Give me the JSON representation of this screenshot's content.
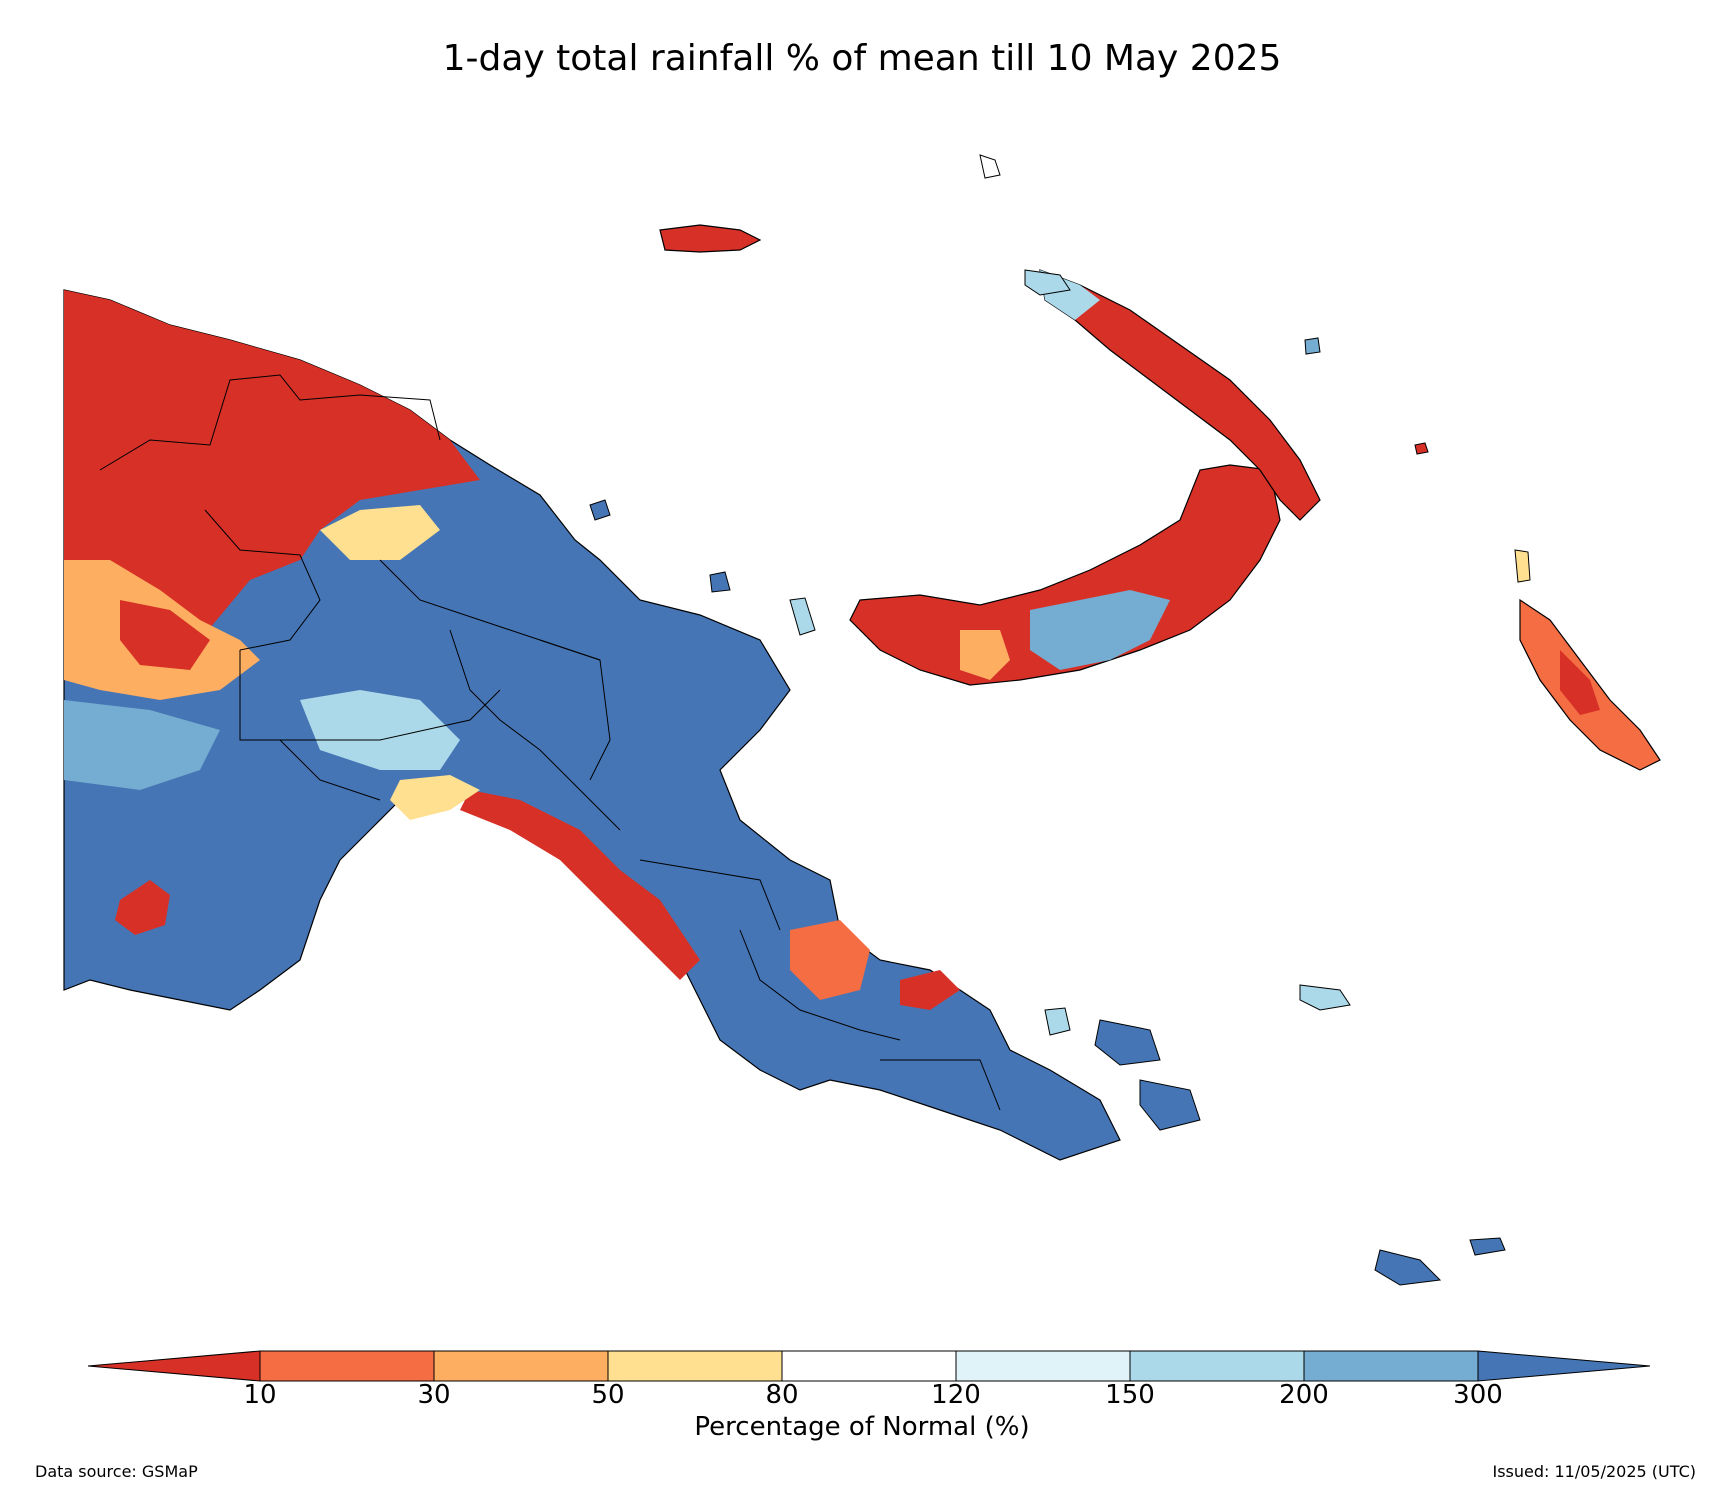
{
  "title": "1-day total rainfall % of mean till 10 May 2025",
  "legend": {
    "label": "Percentage of Normal (%)",
    "ticks": [
      "10",
      "30",
      "50",
      "80",
      "120",
      "150",
      "200",
      "300"
    ],
    "colors": [
      "#d73027",
      "#f46d43",
      "#fdae61",
      "#fee090",
      "#ffffff",
      "#e0f3f8",
      "#abd9e9",
      "#74add1",
      "#4575b4"
    ],
    "extend": "both"
  },
  "footer": {
    "source": "Data source: GSMaP",
    "issued": "Issued: 11/05/2025 (UTC)"
  },
  "colors": {
    "very_dry": "#d73027",
    "dry": "#f46d43",
    "below": "#fdae61",
    "slightly_below": "#fee090",
    "normal": "#ffffff",
    "slightly_above": "#e0f3f8",
    "above": "#abd9e9",
    "wet": "#74add1",
    "very_wet": "#4575b4"
  }
}
